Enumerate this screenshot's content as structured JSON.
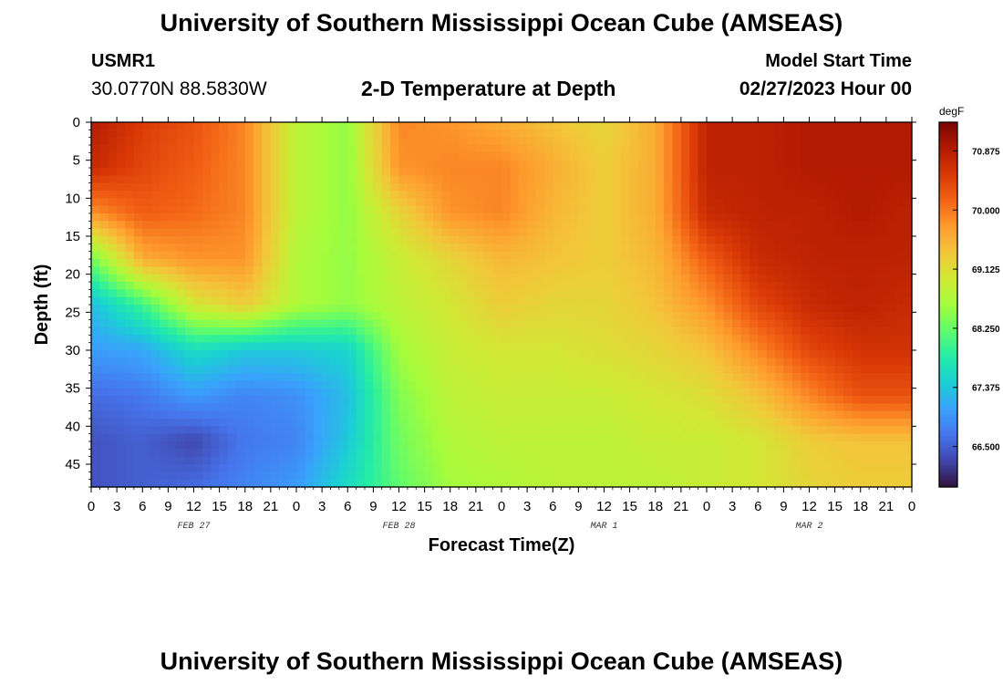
{
  "header": {
    "title": "University of Southern Mississippi Ocean Cube (AMSEAS)",
    "station_id": "USMR1",
    "coordinates": "30.0770N  88.5830W",
    "subtitle": "2-D Temperature at Depth",
    "model_start_label": "Model Start Time",
    "model_start_value": "02/27/2023 Hour 00"
  },
  "footer": {
    "title": "University of Southern Mississippi Ocean Cube (AMSEAS)"
  },
  "chart_data": {
    "type": "heatmap",
    "title": "2-D Temperature at Depth",
    "xlabel": "Forecast Time(Z)",
    "ylabel": "Depth (ft)",
    "x_hours": [
      0,
      6,
      12,
      18,
      24,
      30,
      36,
      42,
      48,
      54,
      60,
      66,
      72,
      78,
      84,
      90,
      96
    ],
    "x_tick_labels": [
      "0",
      "3",
      "6",
      "9",
      "12",
      "15",
      "18",
      "21",
      "0",
      "3",
      "6",
      "9",
      "12",
      "15",
      "18",
      "21",
      "0",
      "3",
      "6",
      "9",
      "12",
      "15",
      "18",
      "21",
      "0",
      "3",
      "6",
      "9",
      "12",
      "15",
      "18",
      "21",
      "0"
    ],
    "x_tick_hours_step": 3,
    "x_range_hours": [
      0,
      96
    ],
    "date_labels": [
      {
        "label": "FEB 27",
        "hour": 12
      },
      {
        "label": "FEB 28",
        "hour": 36
      },
      {
        "label": "MAR 1",
        "hour": 60
      },
      {
        "label": "MAR 2",
        "hour": 84
      }
    ],
    "depths_ft": [
      0,
      6,
      12,
      18,
      24,
      30,
      36,
      42,
      48
    ],
    "y_tick_labels": [
      "0",
      "5",
      "10",
      "15",
      "20",
      "25",
      "30",
      "35",
      "40",
      "45"
    ],
    "ylim": [
      0,
      48
    ],
    "values_degF": [
      [
        70.9,
        70.5,
        70.3,
        69.9,
        68.8,
        68.5,
        69.9,
        69.8,
        69.6,
        69.4,
        69.2,
        69.6,
        70.8,
        70.8,
        70.9,
        70.9,
        70.9
      ],
      [
        70.7,
        70.4,
        70.2,
        69.9,
        68.8,
        68.5,
        69.8,
        69.9,
        69.9,
        69.6,
        69.3,
        69.6,
        70.8,
        70.8,
        70.9,
        70.9,
        70.9
      ],
      [
        69.8,
        70.2,
        70.1,
        69.9,
        68.8,
        68.5,
        69.2,
        69.8,
        69.9,
        69.5,
        69.3,
        69.6,
        70.7,
        70.8,
        70.8,
        70.9,
        70.8
      ],
      [
        68.3,
        69.6,
        69.8,
        69.8,
        68.7,
        68.5,
        68.9,
        69.2,
        69.5,
        69.4,
        69.3,
        69.5,
        70.2,
        70.7,
        70.8,
        70.8,
        70.8
      ],
      [
        67.3,
        68.0,
        69.0,
        69.3,
        68.7,
        68.5,
        68.8,
        69.0,
        69.3,
        69.2,
        69.2,
        69.4,
        69.8,
        70.4,
        70.7,
        70.8,
        70.7
      ],
      [
        67.0,
        67.1,
        67.6,
        67.4,
        67.4,
        67.5,
        68.6,
        68.9,
        69.0,
        69.0,
        69.1,
        69.2,
        69.4,
        69.9,
        70.4,
        70.6,
        70.6
      ],
      [
        66.6,
        66.7,
        67.0,
        66.8,
        66.9,
        67.3,
        68.4,
        68.8,
        68.9,
        68.9,
        68.9,
        69.0,
        69.1,
        69.4,
        69.9,
        70.3,
        70.3
      ],
      [
        66.4,
        66.5,
        66.3,
        66.7,
        66.8,
        67.4,
        68.3,
        68.7,
        68.8,
        68.8,
        68.8,
        68.9,
        68.9,
        69.0,
        69.3,
        69.4,
        69.4
      ],
      [
        66.4,
        66.5,
        66.6,
        66.8,
        67.0,
        67.6,
        68.2,
        68.6,
        68.7,
        68.8,
        68.8,
        68.8,
        68.9,
        69.0,
        69.2,
        69.3,
        69.3
      ]
    ],
    "colorbar": {
      "unit": "degF",
      "min": 65.9,
      "max": 71.3,
      "tick_values": [
        70.875,
        70.0,
        69.125,
        68.25,
        67.375,
        66.5
      ],
      "tick_labels": [
        "70.875",
        "70.000",
        "69.125",
        "68.250",
        "67.375",
        "66.500"
      ]
    },
    "colormap": [
      "#30123b",
      "#4145ab",
      "#4675ed",
      "#39a2fc",
      "#1bcfd4",
      "#24eca6",
      "#61fc6c",
      "#a4fc3b",
      "#d1e834",
      "#f3c63a",
      "#fe9b2d",
      "#f36315",
      "#d93806",
      "#b11901",
      "#7a0402"
    ]
  }
}
